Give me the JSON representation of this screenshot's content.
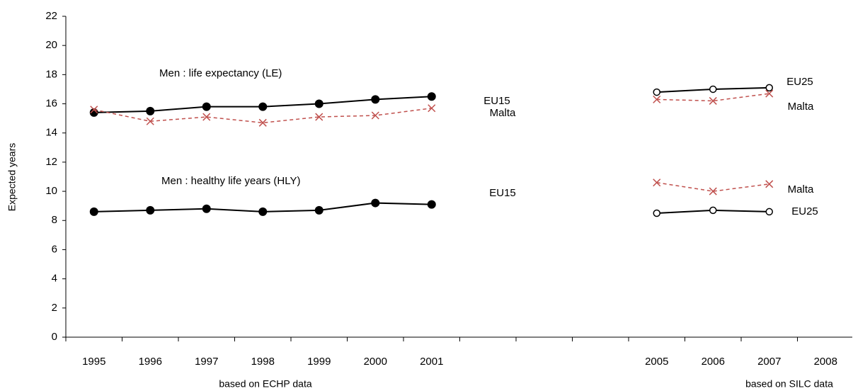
{
  "chart_data": {
    "type": "line",
    "y_label": "Expected years",
    "annotations": [
      "Men : life expectancy (LE)",
      "Men : healthy life years (HLY)",
      "based on ECHP data",
      "based on SILC data"
    ],
    "categories": [
      "1995",
      "1996",
      "1997",
      "1998",
      "1999",
      "2000",
      "2001",
      null,
      null,
      null,
      "2005",
      "2006",
      "2007",
      "2008"
    ],
    "ylim": [
      0,
      22
    ],
    "yticks": [
      0,
      2,
      4,
      6,
      8,
      10,
      12,
      14,
      16,
      18,
      20,
      22
    ],
    "series": [
      {
        "name": "EU15",
        "color": "#000000",
        "marker": "filled-circle",
        "dashed": false,
        "values": [
          15.4,
          15.5,
          15.8,
          15.8,
          16.0,
          16.3,
          16.5,
          null,
          null,
          null,
          null,
          null,
          null,
          null
        ]
      },
      {
        "name": "Malta",
        "color": "#c0504d",
        "marker": "x",
        "dashed": true,
        "values": [
          15.6,
          14.8,
          15.1,
          14.7,
          15.1,
          15.2,
          15.7,
          null,
          null,
          null,
          null,
          null,
          null,
          null
        ]
      },
      {
        "name": "EU25",
        "color": "#000000",
        "marker": "open-circle",
        "dashed": false,
        "values": [
          null,
          null,
          null,
          null,
          null,
          null,
          null,
          null,
          null,
          null,
          16.8,
          17.0,
          17.1,
          null
        ]
      },
      {
        "name": "Malta",
        "color": "#c0504d",
        "marker": "x",
        "dashed": true,
        "values": [
          null,
          null,
          null,
          null,
          null,
          null,
          null,
          null,
          null,
          null,
          16.3,
          16.2,
          16.7,
          null
        ]
      },
      {
        "name": "EU15",
        "color": "#000000",
        "marker": "filled-circle",
        "dashed": false,
        "values": [
          8.6,
          8.7,
          8.8,
          8.6,
          8.7,
          9.2,
          9.1,
          null,
          null,
          null,
          null,
          null,
          null,
          null
        ]
      },
      {
        "name": "Malta",
        "color": "#c0504d",
        "marker": "x",
        "dashed": true,
        "values": [
          null,
          null,
          null,
          null,
          null,
          null,
          null,
          null,
          null,
          null,
          10.6,
          10.0,
          10.5,
          null
        ]
      },
      {
        "name": "EU25",
        "color": "#000000",
        "marker": "open-circle",
        "dashed": false,
        "values": [
          null,
          null,
          null,
          null,
          null,
          null,
          null,
          null,
          null,
          null,
          8.5,
          8.7,
          8.6,
          null
        ]
      }
    ]
  }
}
